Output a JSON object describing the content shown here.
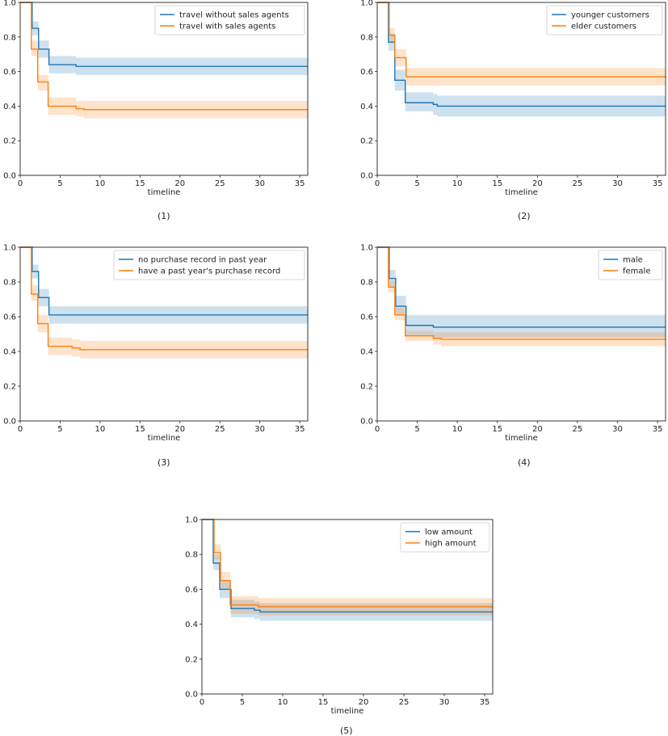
{
  "chart_data": [
    {
      "type": "line",
      "title": "",
      "caption": "(1)",
      "xlabel": "timeline",
      "ylabel": "",
      "xlim": [
        0,
        36
      ],
      "ylim": [
        0,
        1.0
      ],
      "xticks": [
        0,
        5,
        10,
        15,
        20,
        25,
        30,
        35
      ],
      "xtick_labels": [
        "0",
        "5",
        "10",
        "15",
        "20",
        "25",
        "30",
        "35"
      ],
      "yticks": [
        0.0,
        0.2,
        0.4,
        0.6,
        0.8,
        1.0
      ],
      "ytick_labels": [
        "0.0",
        "0.2",
        "0.4",
        "0.6",
        "0.8",
        "1.0"
      ],
      "legend_position": "top-right",
      "series": [
        {
          "name": "travel without sales agents",
          "color": "#1f77b4",
          "steps": [
            [
              0,
              1.0
            ],
            [
              1.5,
              0.85
            ],
            [
              2.3,
              0.73
            ],
            [
              3.6,
              0.64
            ],
            [
              7.0,
              0.63
            ],
            [
              36,
              0.63
            ]
          ],
          "ci": [
            [
              0,
              1.0,
              1.0
            ],
            [
              1.5,
              0.81,
              0.89
            ],
            [
              2.3,
              0.68,
              0.78
            ],
            [
              3.6,
              0.59,
              0.69
            ],
            [
              7.0,
              0.58,
              0.68
            ],
            [
              36,
              0.58,
              0.68
            ]
          ]
        },
        {
          "name": "travel with sales agents",
          "color": "#ff7f0e",
          "steps": [
            [
              0,
              1.0
            ],
            [
              1.4,
              0.73
            ],
            [
              2.2,
              0.54
            ],
            [
              3.5,
              0.4
            ],
            [
              7.0,
              0.385
            ],
            [
              8.0,
              0.38
            ],
            [
              36,
              0.38
            ]
          ],
          "ci": [
            [
              0,
              1.0,
              1.0
            ],
            [
              1.4,
              0.69,
              0.78
            ],
            [
              2.2,
              0.49,
              0.58
            ],
            [
              3.5,
              0.35,
              0.45
            ],
            [
              7.0,
              0.34,
              0.43
            ],
            [
              8.0,
              0.33,
              0.43
            ],
            [
              36,
              0.33,
              0.43
            ]
          ]
        }
      ]
    },
    {
      "type": "line",
      "title": "",
      "caption": "(2)",
      "xlabel": "timeline",
      "ylabel": "",
      "xlim": [
        0,
        36
      ],
      "ylim": [
        0,
        1.0
      ],
      "xticks": [
        0,
        5,
        10,
        15,
        20,
        25,
        30,
        35
      ],
      "xtick_labels": [
        "0",
        "5",
        "10",
        "15",
        "20",
        "25",
        "30",
        "35"
      ],
      "yticks": [
        0.0,
        0.2,
        0.4,
        0.6,
        0.8,
        1.0
      ],
      "ytick_labels": [
        "0.0",
        "0.2",
        "0.4",
        "0.6",
        "0.8",
        "1.0"
      ],
      "legend_position": "top-right",
      "series": [
        {
          "name": "younger customers",
          "color": "#1f77b4",
          "steps": [
            [
              0,
              1.0
            ],
            [
              1.4,
              0.77
            ],
            [
              2.2,
              0.55
            ],
            [
              3.5,
              0.42
            ],
            [
              7.0,
              0.41
            ],
            [
              7.5,
              0.4
            ],
            [
              36,
              0.4
            ]
          ],
          "ci": [
            [
              0,
              1.0,
              1.0
            ],
            [
              1.4,
              0.72,
              0.82
            ],
            [
              2.2,
              0.49,
              0.61
            ],
            [
              3.5,
              0.37,
              0.48
            ],
            [
              7.0,
              0.35,
              0.47
            ],
            [
              7.5,
              0.34,
              0.46
            ],
            [
              36,
              0.34,
              0.46
            ]
          ]
        },
        {
          "name": "elder customers",
          "color": "#ff7f0e",
          "steps": [
            [
              0,
              1.0
            ],
            [
              1.5,
              0.81
            ],
            [
              2.2,
              0.68
            ],
            [
              3.6,
              0.57
            ],
            [
              36,
              0.565
            ]
          ],
          "ci": [
            [
              0,
              1.0,
              1.0
            ],
            [
              1.5,
              0.77,
              0.85
            ],
            [
              2.2,
              0.63,
              0.73
            ],
            [
              3.6,
              0.52,
              0.62
            ],
            [
              36,
              0.51,
              0.62
            ]
          ]
        }
      ]
    },
    {
      "type": "line",
      "title": "",
      "caption": "(3)",
      "xlabel": "timeline",
      "ylabel": "",
      "xlim": [
        0,
        36
      ],
      "ylim": [
        0,
        1.0
      ],
      "xticks": [
        0,
        5,
        10,
        15,
        20,
        25,
        30,
        35
      ],
      "xtick_labels": [
        "0",
        "5",
        "10",
        "15",
        "20",
        "25",
        "30",
        "35"
      ],
      "yticks": [
        0.0,
        0.2,
        0.4,
        0.6,
        0.8,
        1.0
      ],
      "ytick_labels": [
        "0.0",
        "0.2",
        "0.4",
        "0.6",
        "0.8",
        "1.0"
      ],
      "legend_position": "top-right",
      "series": [
        {
          "name": "no purchase record in past year",
          "color": "#1f77b4",
          "steps": [
            [
              0,
              1.0
            ],
            [
              1.5,
              0.86
            ],
            [
              2.3,
              0.71
            ],
            [
              3.6,
              0.61
            ],
            [
              36,
              0.61
            ]
          ],
          "ci": [
            [
              0,
              1.0,
              1.0
            ],
            [
              1.5,
              0.82,
              0.9
            ],
            [
              2.3,
              0.66,
              0.76
            ],
            [
              3.6,
              0.56,
              0.66
            ],
            [
              36,
              0.55,
              0.67
            ]
          ]
        },
        {
          "name": "have a past year's purchase record",
          "color": "#ff7f0e",
          "steps": [
            [
              0,
              1.0
            ],
            [
              1.4,
              0.73
            ],
            [
              2.2,
              0.56
            ],
            [
              3.5,
              0.43
            ],
            [
              6.5,
              0.42
            ],
            [
              7.5,
              0.41
            ],
            [
              36,
              0.41
            ]
          ],
          "ci": [
            [
              0,
              1.0,
              1.0
            ],
            [
              1.4,
              0.69,
              0.78
            ],
            [
              2.2,
              0.51,
              0.61
            ],
            [
              3.5,
              0.38,
              0.48
            ],
            [
              6.5,
              0.37,
              0.47
            ],
            [
              7.5,
              0.36,
              0.46
            ],
            [
              36,
              0.36,
              0.46
            ]
          ]
        }
      ]
    },
    {
      "type": "line",
      "title": "",
      "caption": "(4)",
      "xlabel": "timeline",
      "ylabel": "",
      "xlim": [
        0,
        36
      ],
      "ylim": [
        0,
        1.0
      ],
      "xticks": [
        0,
        5,
        10,
        15,
        20,
        25,
        30,
        35
      ],
      "xtick_labels": [
        "0",
        "5",
        "10",
        "15",
        "20",
        "25",
        "30",
        "35"
      ],
      "yticks": [
        0.0,
        0.2,
        0.4,
        0.6,
        0.8,
        1.0
      ],
      "ytick_labels": [
        "0.0",
        "0.2",
        "0.4",
        "0.6",
        "0.8",
        "1.0"
      ],
      "legend_position": "top-right",
      "series": [
        {
          "name": "male",
          "color": "#1f77b4",
          "steps": [
            [
              0,
              1.0
            ],
            [
              1.5,
              0.82
            ],
            [
              2.3,
              0.66
            ],
            [
              3.6,
              0.55
            ],
            [
              7.0,
              0.54
            ],
            [
              36,
              0.54
            ]
          ],
          "ci": [
            [
              0,
              1.0,
              1.0
            ],
            [
              1.5,
              0.77,
              0.87
            ],
            [
              2.3,
              0.61,
              0.72
            ],
            [
              3.6,
              0.49,
              0.61
            ],
            [
              7.0,
              0.48,
              0.61
            ],
            [
              36,
              0.48,
              0.61
            ]
          ]
        },
        {
          "name": "female",
          "color": "#ff7f0e",
          "steps": [
            [
              0,
              1.0
            ],
            [
              1.4,
              0.77
            ],
            [
              2.2,
              0.61
            ],
            [
              3.5,
              0.49
            ],
            [
              7.0,
              0.475
            ],
            [
              8.0,
              0.47
            ],
            [
              36,
              0.47
            ]
          ],
          "ci": [
            [
              0,
              1.0,
              1.0
            ],
            [
              1.4,
              0.74,
              0.81
            ],
            [
              2.2,
              0.58,
              0.65
            ],
            [
              3.5,
              0.46,
              0.52
            ],
            [
              7.0,
              0.44,
              0.51
            ],
            [
              8.0,
              0.43,
              0.51
            ],
            [
              36,
              0.43,
              0.51
            ]
          ]
        }
      ]
    },
    {
      "type": "line",
      "title": "",
      "caption": "(5)",
      "xlabel": "timeline",
      "ylabel": "",
      "xlim": [
        0,
        36
      ],
      "ylim": [
        0,
        1.0
      ],
      "xticks": [
        0,
        5,
        10,
        15,
        20,
        25,
        30,
        35
      ],
      "xtick_labels": [
        "0",
        "5",
        "10",
        "15",
        "20",
        "25",
        "30",
        "35"
      ],
      "yticks": [
        0.0,
        0.2,
        0.4,
        0.6,
        0.8,
        1.0
      ],
      "ytick_labels": [
        "0.0",
        "0.2",
        "0.4",
        "0.6",
        "0.8",
        "1.0"
      ],
      "legend_position": "top-right",
      "series": [
        {
          "name": "low amount",
          "color": "#1f77b4",
          "steps": [
            [
              0,
              1.0
            ],
            [
              1.4,
              0.75
            ],
            [
              2.2,
              0.6
            ],
            [
              3.6,
              0.49
            ],
            [
              6.5,
              0.48
            ],
            [
              7.2,
              0.47
            ],
            [
              36,
              0.47
            ]
          ],
          "ci": [
            [
              0,
              1.0,
              1.0
            ],
            [
              1.4,
              0.71,
              0.8
            ],
            [
              2.2,
              0.55,
              0.65
            ],
            [
              3.6,
              0.44,
              0.54
            ],
            [
              6.5,
              0.43,
              0.53
            ],
            [
              7.2,
              0.42,
              0.52
            ],
            [
              36,
              0.42,
              0.52
            ]
          ]
        },
        {
          "name": "high amount",
          "color": "#ff7f0e",
          "steps": [
            [
              0,
              1.0
            ],
            [
              1.5,
              0.81
            ],
            [
              2.3,
              0.65
            ],
            [
              3.5,
              0.51
            ],
            [
              7.0,
              0.5
            ],
            [
              36,
              0.5
            ]
          ],
          "ci": [
            [
              0,
              1.0,
              1.0
            ],
            [
              1.5,
              0.77,
              0.86
            ],
            [
              2.3,
              0.6,
              0.7
            ],
            [
              3.5,
              0.46,
              0.56
            ],
            [
              7.0,
              0.45,
              0.55
            ],
            [
              36,
              0.45,
              0.55
            ]
          ]
        }
      ]
    }
  ]
}
